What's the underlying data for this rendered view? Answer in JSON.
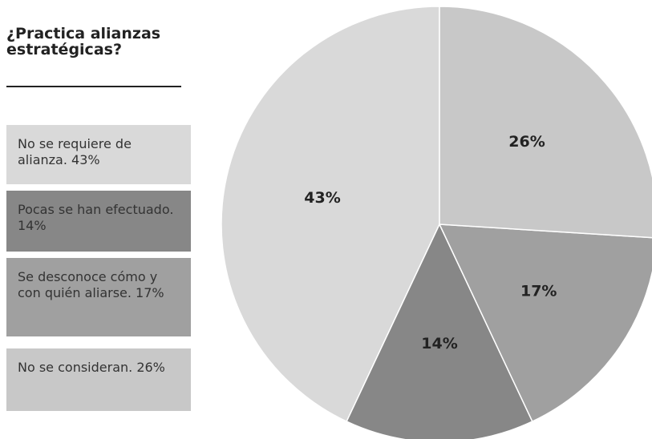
{
  "chart_data": {
    "type": "pie",
    "title": "¿Practica alianzas estratégicas?",
    "categories": [
      "No se requiere de alianza. 43%",
      "Pocas se han efectuado. 14%",
      "Se desconoce cómo y con quién aliarse. 17%",
      "No se consideran. 26%"
    ],
    "values": [
      43,
      14,
      17,
      26
    ],
    "value_labels": [
      "43%",
      "14%",
      "17%",
      "26%"
    ],
    "colors": [
      "#d9d9d9",
      "#878787",
      "#a0a0a0",
      "#c8c8c8"
    ]
  }
}
